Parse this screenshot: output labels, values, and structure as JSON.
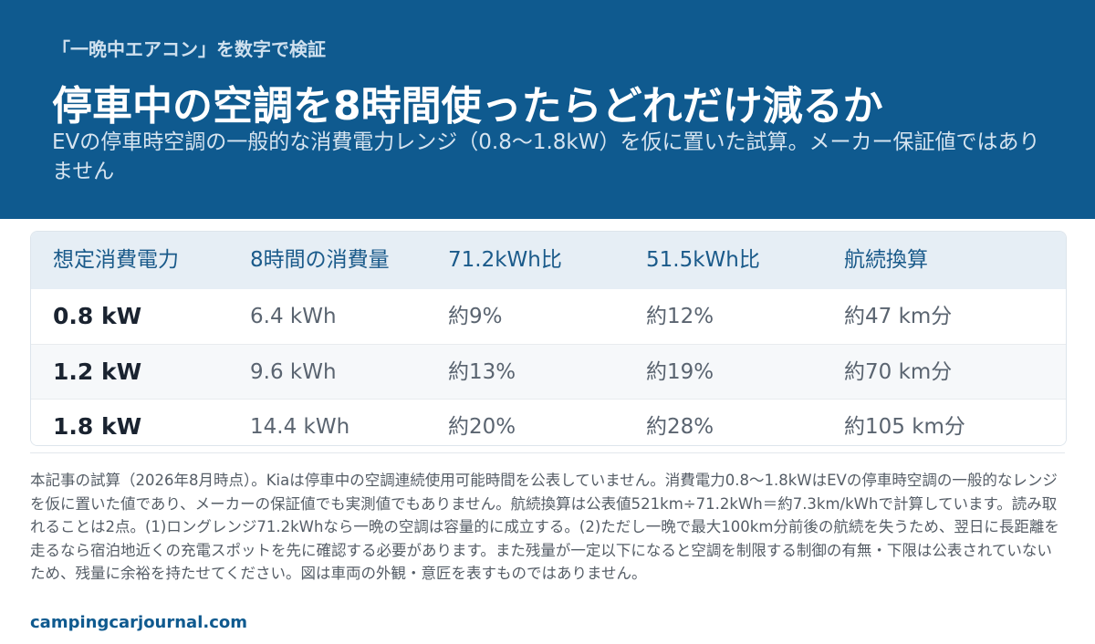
{
  "header": {
    "kicker": "「一晩中エアコン」を数字で検証",
    "title": "停車中の空調を8時間使ったらどれだけ減るか",
    "subtitle": "EVの停車時空調の一般的な消費電力レンジ（0.8〜1.8kW）を仮に置いた試算。メーカー保証値ではありません"
  },
  "table": {
    "columns": [
      "想定消費電力",
      "8時間の消費量",
      "71.2kWh比",
      "51.5kWh比",
      "航続換算"
    ],
    "rows": [
      [
        "0.8 kW",
        "6.4 kWh",
        "約9%",
        "約12%",
        "約47 km分"
      ],
      [
        "1.2 kW",
        "9.6 kWh",
        "約13%",
        "約19%",
        "約70 km分"
      ],
      [
        "1.8 kW",
        "14.4 kWh",
        "約20%",
        "約28%",
        "約105 km分"
      ]
    ]
  },
  "footnote": "本記事の試算（2026年8月時点）。Kiaは停車中の空調連続使用可能時間を公表していません。消費電力0.8〜1.8kWはEVの停車時空調の一般的なレンジを仮に置いた値であり、メーカーの保証値でも実測値でもありません。航続換算は公表値521km÷71.2kWh＝約7.3km/kWhで計算しています。読み取れることは2点。(1)ロングレンジ71.2kWhなら一晩の空調は容量的に成立する。(2)ただし一晩で最大100km分前後の航続を失うため、翌日に長距離を走るなら宿泊地近くの充電スポットを先に確認する必要があります。また残量が一定以下になると空調を制限する制御の有無・下限は公表されていないため、残量に余裕を持たせてください。図は車両の外観・意匠を表すものではありません。",
  "source": "campingcarjournal.com"
}
